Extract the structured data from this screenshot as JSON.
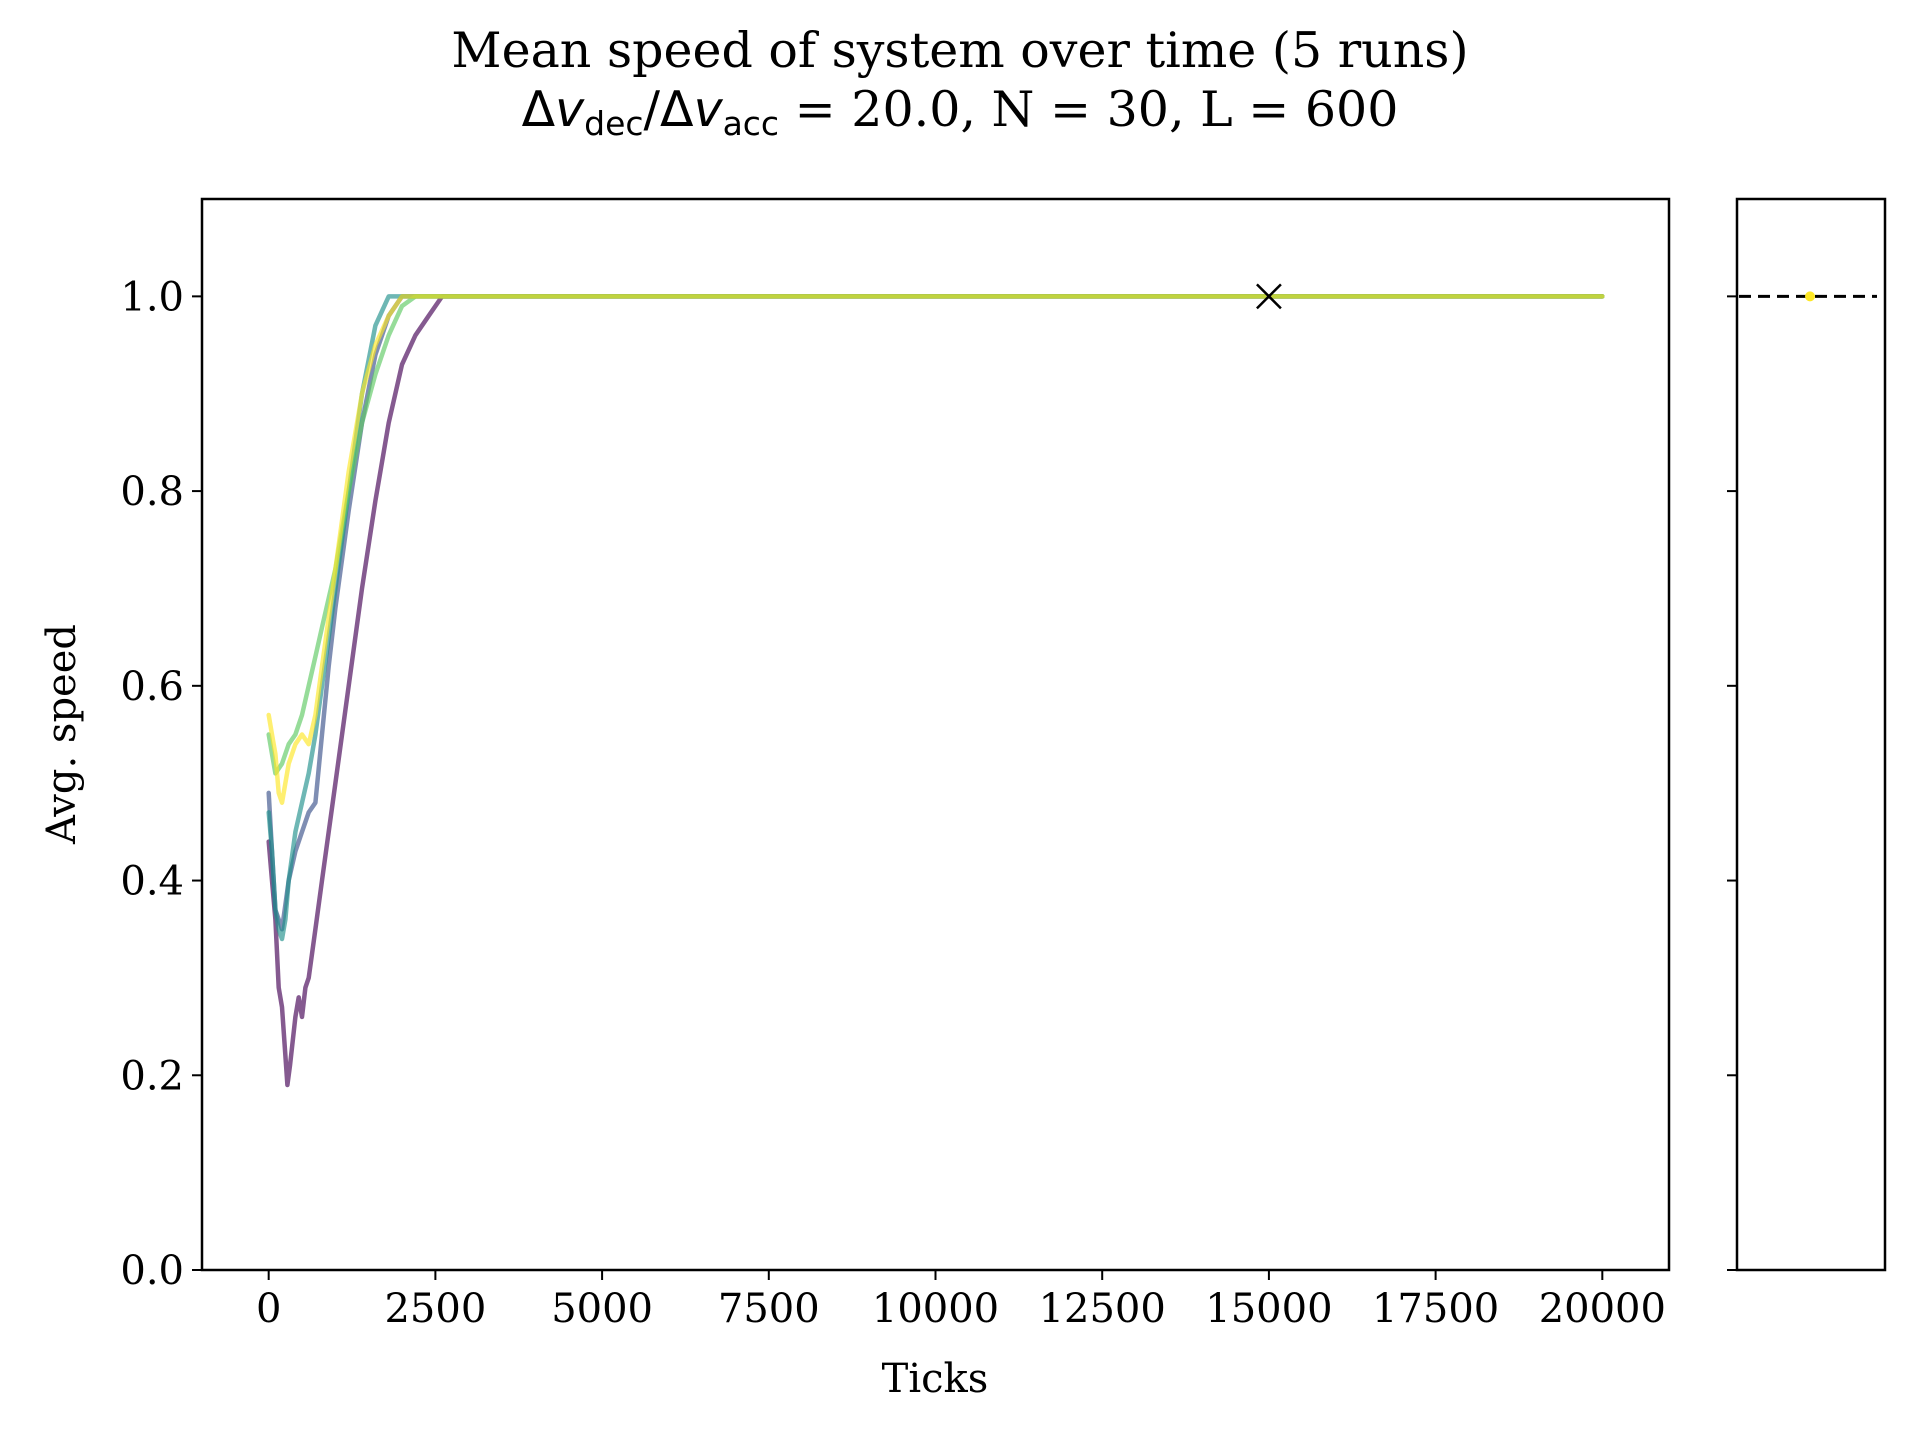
{
  "chart_data": [
    {
      "type": "line",
      "title": "Mean speed of system over time (5 runs)",
      "subtitle": {
        "dec_sub": "dec",
        "acc_sub": "acc",
        "ratio_text": " = 20.0, N = 30, L = 600"
      },
      "xlabel": "Ticks",
      "ylabel": "Avg. speed",
      "xlim": [
        -1000,
        21000
      ],
      "ylim": [
        0.0,
        1.1
      ],
      "xticks": [
        0,
        2500,
        5000,
        7500,
        10000,
        12500,
        15000,
        17500,
        20000
      ],
      "xtick_labels": [
        "0",
        "2500",
        "5000",
        "7500",
        "10000",
        "12500",
        "15000",
        "17500",
        "20000"
      ],
      "yticks": [
        0.0,
        0.2,
        0.4,
        0.6,
        0.8,
        1.0
      ],
      "ytick_labels": [
        "0.0",
        "0.2",
        "0.4",
        "0.6",
        "0.8",
        "1.0"
      ],
      "grid": false,
      "legend": "none",
      "series": [
        {
          "color": "#440154",
          "x": [
            0,
            50,
            100,
            150,
            200,
            250,
            280,
            320,
            400,
            450,
            500,
            550,
            600,
            700,
            800,
            1000,
            1200,
            1400,
            1600,
            1800,
            2000,
            2200,
            2400,
            2600,
            20000
          ],
          "y": [
            0.44,
            0.4,
            0.36,
            0.29,
            0.27,
            0.22,
            0.19,
            0.21,
            0.26,
            0.28,
            0.26,
            0.29,
            0.3,
            0.35,
            0.4,
            0.5,
            0.6,
            0.7,
            0.79,
            0.87,
            0.93,
            0.96,
            0.98,
            1.0,
            1.0
          ]
        },
        {
          "color": "#3b528b",
          "x": [
            0,
            50,
            100,
            150,
            200,
            300,
            400,
            500,
            600,
            700,
            800,
            900,
            1000,
            1200,
            1400,
            1600,
            1800,
            2000,
            20000
          ],
          "y": [
            0.49,
            0.43,
            0.37,
            0.36,
            0.35,
            0.4,
            0.43,
            0.45,
            0.47,
            0.48,
            0.55,
            0.62,
            0.68,
            0.78,
            0.87,
            0.94,
            0.98,
            1.0,
            1.0
          ]
        },
        {
          "color": "#21918c",
          "x": [
            0,
            50,
            100,
            150,
            200,
            250,
            300,
            400,
            500,
            600,
            700,
            800,
            1000,
            1200,
            1400,
            1600,
            1800,
            20000
          ],
          "y": [
            0.47,
            0.43,
            0.37,
            0.35,
            0.34,
            0.36,
            0.4,
            0.45,
            0.48,
            0.51,
            0.55,
            0.6,
            0.7,
            0.8,
            0.9,
            0.97,
            1.0,
            1.0
          ]
        },
        {
          "color": "#5ec962",
          "x": [
            0,
            50,
            100,
            200,
            300,
            400,
            500,
            600,
            700,
            800,
            900,
            1000,
            1200,
            1400,
            1600,
            1800,
            2000,
            2200,
            20000
          ],
          "y": [
            0.55,
            0.53,
            0.51,
            0.52,
            0.54,
            0.55,
            0.57,
            0.6,
            0.63,
            0.66,
            0.69,
            0.72,
            0.8,
            0.87,
            0.92,
            0.96,
            0.99,
            1.0,
            1.0
          ]
        },
        {
          "color": "#fde725",
          "x": [
            0,
            50,
            100,
            150,
            200,
            300,
            400,
            500,
            600,
            700,
            800,
            1000,
            1200,
            1400,
            1600,
            1800,
            2000,
            20000
          ],
          "y": [
            0.57,
            0.55,
            0.53,
            0.49,
            0.48,
            0.52,
            0.54,
            0.55,
            0.54,
            0.57,
            0.62,
            0.72,
            0.82,
            0.9,
            0.95,
            0.98,
            1.0,
            1.0
          ]
        }
      ],
      "marker": {
        "symbol": "x",
        "x": 15000,
        "y": 1.0,
        "color": "#000000"
      }
    },
    {
      "type": "scatter",
      "title": "",
      "ylim": [
        0.0,
        1.1
      ],
      "points": [
        {
          "y": 1.0,
          "color": "#fde725"
        }
      ],
      "reference_line": {
        "y": 1.0,
        "style": "dashed",
        "color": "#000000"
      }
    }
  ]
}
